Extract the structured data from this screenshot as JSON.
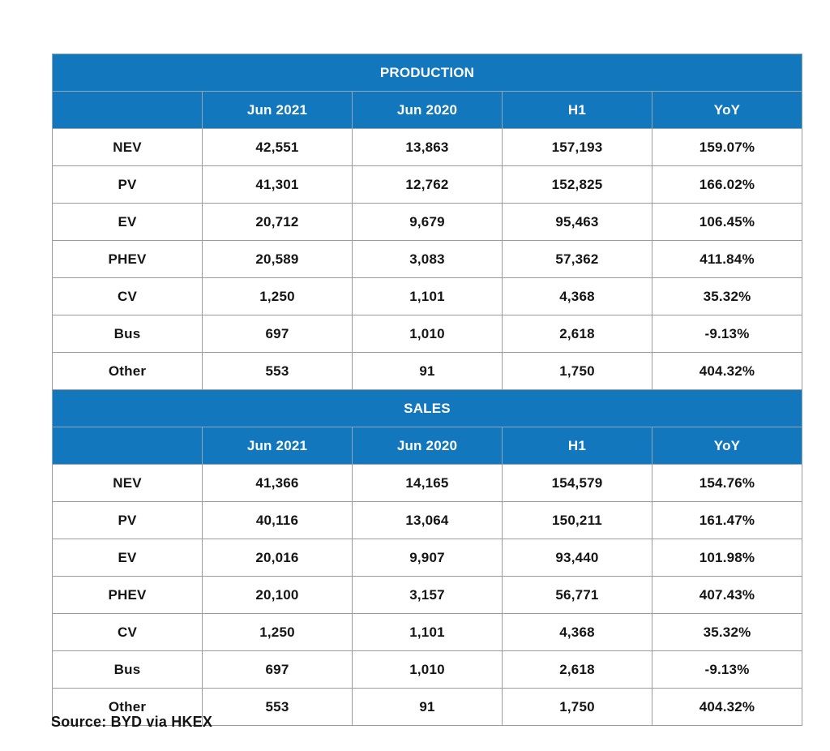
{
  "colors": {
    "header_blue": "#1377BD",
    "header_text": "#ffffff",
    "cell_text": "#151515",
    "border_gray": "#9c9c9c"
  },
  "source": "Source: BYD via HKEX",
  "chart_data": {
    "type": "table",
    "columns": [
      "",
      "Jun 2021",
      "Jun 2020",
      "H1",
      "YoY"
    ],
    "sections": [
      {
        "title": "PRODUCTION",
        "rows": [
          [
            "NEV",
            "42,551",
            "13,863",
            "157,193",
            "159.07%"
          ],
          [
            "PV",
            "41,301",
            "12,762",
            "152,825",
            "166.02%"
          ],
          [
            "EV",
            "20,712",
            "9,679",
            "95,463",
            "106.45%"
          ],
          [
            "PHEV",
            "20,589",
            "3,083",
            "57,362",
            "411.84%"
          ],
          [
            "CV",
            "1,250",
            "1,101",
            "4,368",
            "35.32%"
          ],
          [
            "Bus",
            "697",
            "1,010",
            "2,618",
            "-9.13%"
          ],
          [
            "Other",
            "553",
            "91",
            "1,750",
            "404.32%"
          ]
        ]
      },
      {
        "title": "SALES",
        "rows": [
          [
            "NEV",
            "41,366",
            "14,165",
            "154,579",
            "154.76%"
          ],
          [
            "PV",
            "40,116",
            "13,064",
            "150,211",
            "161.47%"
          ],
          [
            "EV",
            "20,016",
            "9,907",
            "93,440",
            "101.98%"
          ],
          [
            "PHEV",
            "20,100",
            "3,157",
            "56,771",
            "407.43%"
          ],
          [
            "CV",
            "1,250",
            "1,101",
            "4,368",
            "35.32%"
          ],
          [
            "Bus",
            "697",
            "1,010",
            "2,618",
            "-9.13%"
          ],
          [
            "Other",
            "553",
            "91",
            "1,750",
            "404.32%"
          ]
        ]
      }
    ]
  }
}
